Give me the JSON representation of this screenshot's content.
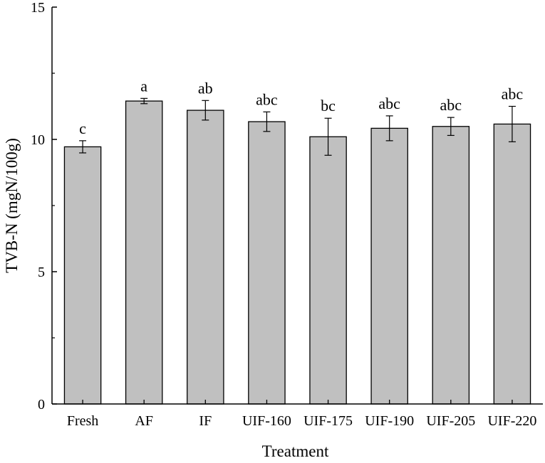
{
  "chart_data": {
    "type": "bar",
    "xlabel": "Treatment",
    "ylabel": "TVB-N (mgN/100g)",
    "ylim": [
      0,
      15
    ],
    "yticks": [
      0,
      5,
      10,
      15
    ],
    "grid": false,
    "bar_color": "#c0c0c0",
    "categories": [
      "Fresh",
      "AF",
      "IF",
      "UIF-160",
      "UIF-175",
      "UIF-190",
      "UIF-205",
      "UIF-220"
    ],
    "values": [
      9.72,
      11.45,
      11.1,
      10.67,
      10.1,
      10.42,
      10.49,
      10.58
    ],
    "errors": [
      0.23,
      0.1,
      0.37,
      0.37,
      0.7,
      0.47,
      0.34,
      0.67
    ],
    "significance_labels": [
      "c",
      "a",
      "ab",
      "abc",
      "bc",
      "abc",
      "abc",
      "abc"
    ]
  }
}
